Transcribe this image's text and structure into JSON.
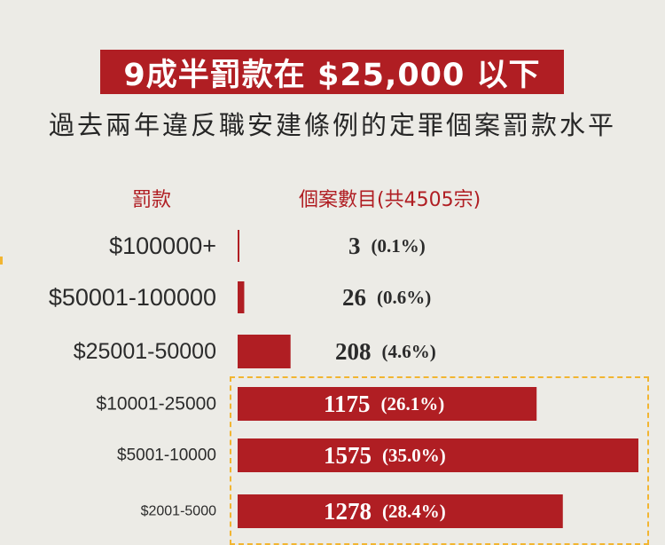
{
  "headline": "9成半罰款在 $25,000 以下",
  "subtitle": "過去兩年違反職安建條例的定罪個案罰款水平",
  "columns": {
    "fine": "罰款",
    "cases": "個案數目(共4505宗)"
  },
  "colors": {
    "bar": "#b01e23",
    "headline_bg": "#b01e23",
    "highlight_border": "#f2b531",
    "background": "#ecebe6"
  },
  "chart_data": {
    "type": "bar",
    "orientation": "horizontal",
    "total_cases": 4505,
    "categories": [
      "$100000+",
      "$50001-100000",
      "$25001-50000",
      "$10001-25000",
      "$5001-10000",
      "$2001-5000"
    ],
    "values": [
      3,
      26,
      208,
      1175,
      1575,
      1278
    ],
    "value_labels": [
      "3",
      "26",
      "208",
      "1175",
      "1575",
      "1278"
    ],
    "percent_labels": [
      "(0.1%)",
      "(0.6%)",
      "(4.6%)",
      "(26.1%)",
      "(35.0%)",
      "(28.4%)"
    ],
    "highlighted_categories": [
      "$10001-25000",
      "$5001-10000",
      "$2001-5000"
    ],
    "axis_visible": false,
    "grid": false
  }
}
